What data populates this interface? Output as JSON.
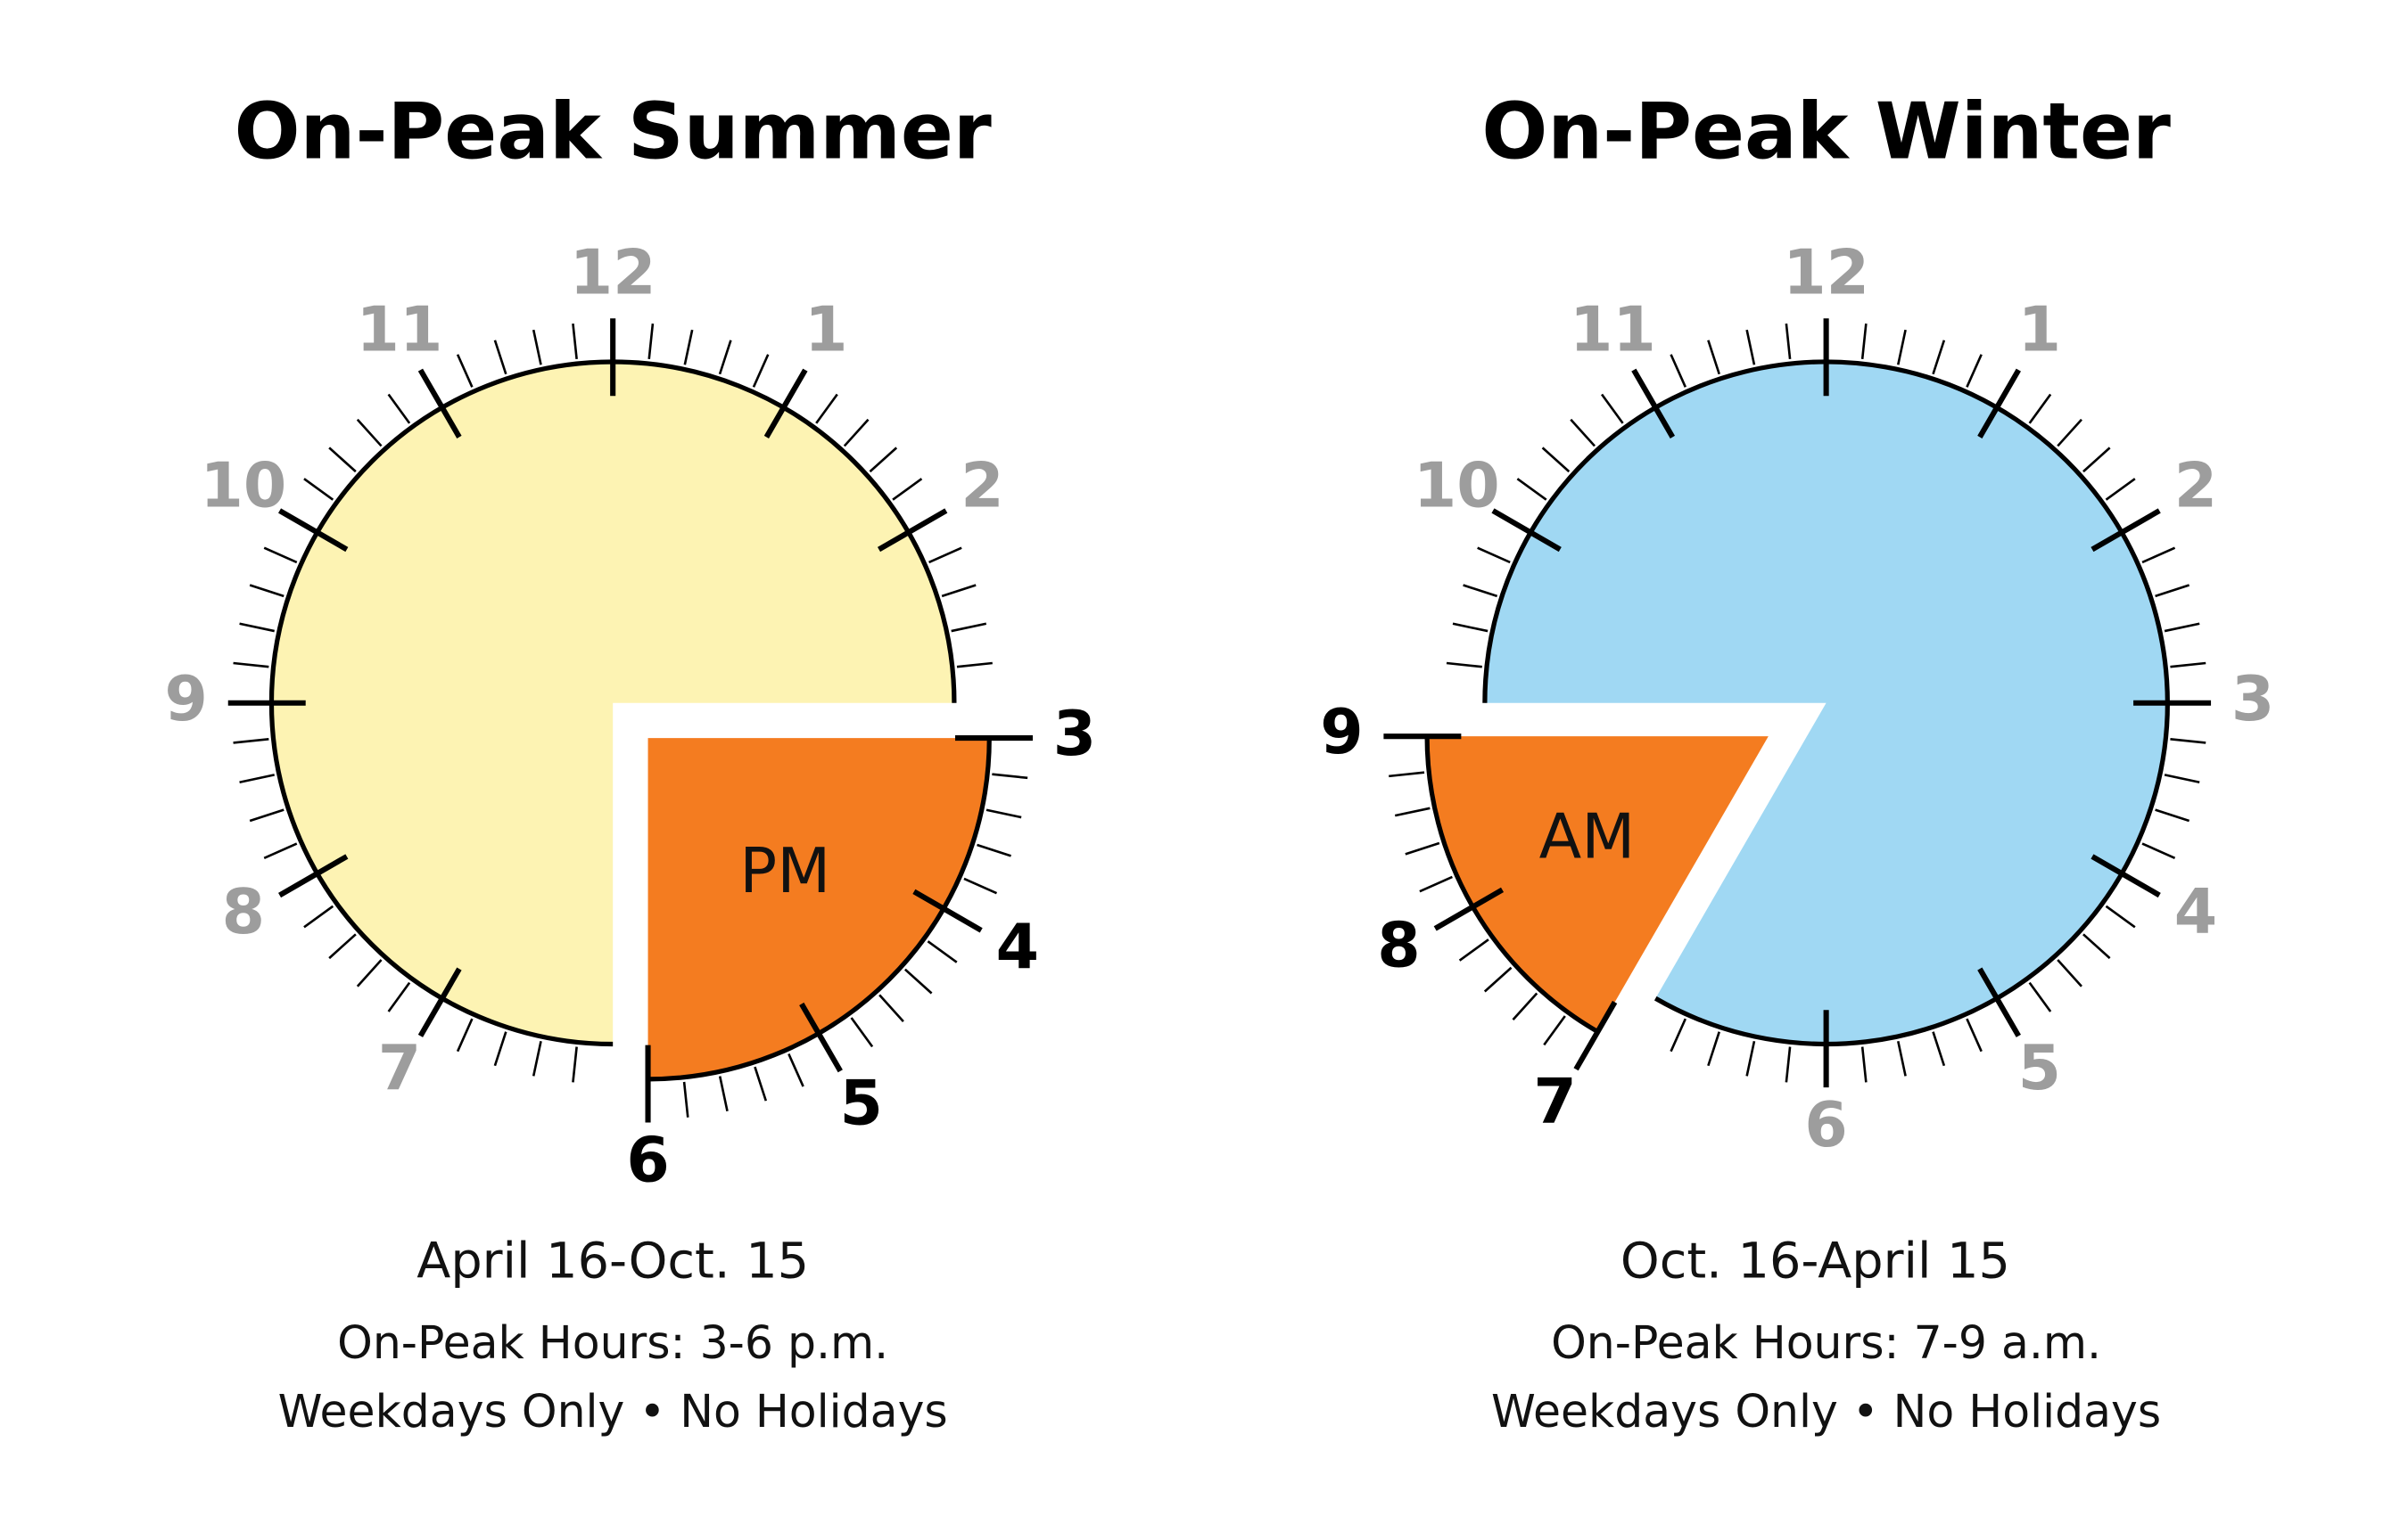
{
  "panels": [
    {
      "title": "On-Peak Summer",
      "clock_labels": [
        "12",
        "1",
        "2",
        "3",
        "4",
        "5",
        "6",
        "7",
        "8",
        "9",
        "10",
        "11"
      ],
      "period": "PM",
      "dates": "April 16-Oct. 15",
      "hours": "On-Peak Hours: 3-6 p.m.",
      "note": "Weekdays Only • No Holidays"
    },
    {
      "title": "On-Peak Winter",
      "clock_labels": [
        "12",
        "1",
        "2",
        "3",
        "4",
        "5",
        "6",
        "7",
        "8",
        "9",
        "10",
        "11"
      ],
      "period": "AM",
      "dates": "Oct. 16-April 15",
      "hours": "On-Peak Hours: 7-9 a.m.",
      "note": "Weekdays Only • No Holidays"
    }
  ]
}
